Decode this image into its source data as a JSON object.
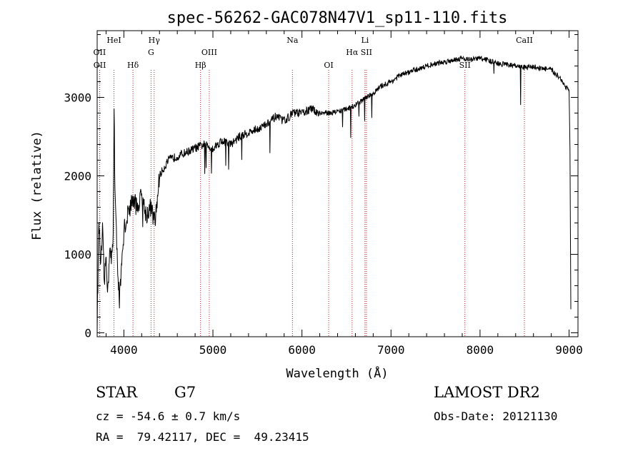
{
  "chart_data": {
    "type": "line",
    "title": "spec-56262-GAC078N47V1_sp11-110.fits",
    "xlabel": "Wavelength (Å)",
    "ylabel": "Flux (relative)",
    "xlim": [
      3700,
      9100
    ],
    "ylim": [
      -50,
      3850
    ],
    "x_ticks": [
      4000,
      5000,
      6000,
      7000,
      8000,
      9000
    ],
    "x_tick_labels": [
      "4000",
      "5000",
      "6000",
      "7000",
      "8000",
      "9000"
    ],
    "y_ticks": [
      0,
      1000,
      2000,
      3000
    ],
    "y_tick_labels": [
      "0",
      "1000",
      "2000",
      "3000"
    ],
    "grid": false,
    "series": [
      {
        "x": [
          3700,
          3720,
          3740,
          3760,
          3780,
          3800,
          3820,
          3840,
          3860,
          3880,
          3890,
          3900,
          3920,
          3950,
          3980,
          4000,
          4050,
          4100,
          4150,
          4200,
          4250,
          4300,
          4350,
          4400,
          4450,
          4500,
          4600,
          4700,
          4800,
          4900,
          5000,
          5100,
          5200,
          5300,
          5400,
          5500,
          5600,
          5700,
          5800,
          5900,
          6000,
          6100,
          6200,
          6300,
          6400,
          6500,
          6600,
          6700,
          6800,
          6900,
          7000,
          7100,
          7200,
          7300,
          7400,
          7500,
          7600,
          7700,
          7800,
          7900,
          8000,
          8100,
          8200,
          8300,
          8400,
          8500,
          8600,
          8700,
          8800,
          8850,
          8900,
          8950,
          9000,
          9010,
          9020
        ],
        "y": [
          100,
          1450,
          800,
          1300,
          600,
          1000,
          500,
          1100,
          900,
          1200,
          2950,
          1800,
          1100,
          400,
          900,
          1300,
          1550,
          1700,
          1600,
          1750,
          1500,
          1600,
          1400,
          2000,
          2100,
          2200,
          2250,
          2300,
          2350,
          2400,
          2350,
          2450,
          2400,
          2500,
          2550,
          2600,
          2650,
          2750,
          2700,
          2800,
          2800,
          2850,
          2800,
          2800,
          2820,
          2850,
          2900,
          2980,
          3050,
          3150,
          3200,
          3280,
          3320,
          3360,
          3400,
          3430,
          3450,
          3480,
          3500,
          3480,
          3500,
          3470,
          3430,
          3420,
          3400,
          3380,
          3390,
          3370,
          3350,
          3300,
          3250,
          3150,
          3100,
          2300,
          300
        ]
      }
    ],
    "line_annotations": [
      {
        "label": "OII",
        "x": 3727,
        "row": 1
      },
      {
        "label": "OII",
        "x": 3729,
        "row": 2
      },
      {
        "label": "HeI",
        "x": 3889,
        "row": 0
      },
      {
        "label": "Hδ",
        "x": 4102,
        "row": 2
      },
      {
        "label": "Hγ",
        "x": 4340,
        "row": 0
      },
      {
        "label": "G",
        "x": 4305,
        "row": 1
      },
      {
        "label": "OIII",
        "x": 4959,
        "row": 1
      },
      {
        "label": "Hβ",
        "x": 4861,
        "row": 2
      },
      {
        "label": "Na",
        "x": 5893,
        "row": 0
      },
      {
        "label": "OI",
        "x": 6300,
        "row": 2
      },
      {
        "label": "Li",
        "x": 6708,
        "row": 0
      },
      {
        "label": "Hα",
        "x": 6563,
        "row": 1
      },
      {
        "label": "SII",
        "x": 6724,
        "row": 1
      },
      {
        "label": "SII",
        "x": 7830,
        "row": 2
      },
      {
        "label": "CaII",
        "x": 8498,
        "row": 0
      }
    ]
  },
  "info": {
    "object_class": "STAR",
    "subclass": "G7",
    "survey": "LAMOST DR2",
    "cz_line": "cz = -54.6 ± 0.7 km/s",
    "obs_date": "Obs-Date: 20121130",
    "coords": "RA =  79.42117, DEC =  49.23415"
  },
  "colors": {
    "spectrum": "#000000",
    "marker_lines": "#b22222"
  }
}
